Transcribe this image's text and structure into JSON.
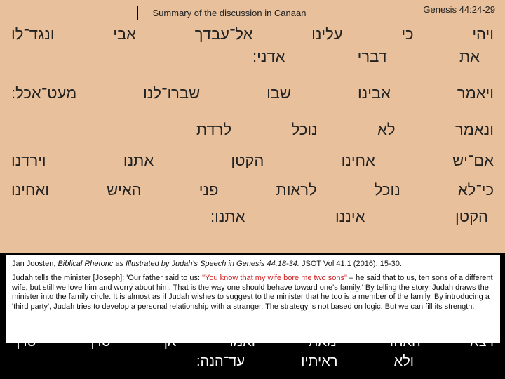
{
  "colors": {
    "panel_bg": "#e8c09b",
    "page_bg": "#000000",
    "text": "#222222",
    "citation_bg": "#ffffff",
    "citation_border": "#000000",
    "red": "#d02020",
    "bottom_text": "#ffffff"
  },
  "typography": {
    "body_font": "Arial",
    "hebrew_fontsize": 22,
    "header_fontsize": 13,
    "citation_fontsize": 11
  },
  "header": {
    "reference": "Genesis 44:24-29",
    "summary_label": "Summary of the discussion in Canaan"
  },
  "hebrew_lines": {
    "l1": [
      "ויהי",
      "כי",
      "עלינו",
      "אל־עבדך",
      "אבי",
      "ונגד־לו"
    ],
    "l2": [
      "את",
      "דברי",
      "אדני:"
    ],
    "l3": [
      "ויאמר",
      "אבינו",
      "שבו",
      "שברו־לנו",
      "מעט־אכל:"
    ],
    "l4": [
      "ונאמר",
      "לא",
      "נוכל",
      "לרדת"
    ],
    "l5": [
      "אם־יש",
      "אחינו",
      "הקטן",
      "אתנו",
      "וירדנו"
    ],
    "l6": [
      "כי־לא",
      "נוכל",
      "לראות",
      "פני",
      "האיש",
      "ואחינו"
    ],
    "l7": [
      "הקטן",
      "איננו",
      "אתנו:"
    ]
  },
  "bottom_lines": {
    "b1": [
      "ויצא",
      "האחד",
      "מאתי",
      "ואמר",
      "אך",
      "טרף",
      "טרף"
    ],
    "b2": [
      "ולא",
      "ראיתיו",
      "עד־הנה:"
    ]
  },
  "citation": {
    "author": "Jan Joosten,",
    "title_html": "Biblical Rhetoric as Illustrated by Judah's Speech in Genesis 44.18-34.",
    "journal": "JSOT Vol 41.1 (2016); 15-30.",
    "body_prefix": "Judah tells the minister [Joseph]: 'Our father said to us: ",
    "body_red": "\"You know that my wife bore me two sons\"",
    "body_suffix": " – he said that to us, ten sons of a different wife, but still we love him and worry about him. That is the way one should behave toward one's family.' By telling the story, Judah draws the minister into the family circle. It is almost as if Judah wishes to suggest to the minister that he too is a member of the family. By introducing a 'third party', Judah tries to develop a personal relationship with a stranger. The strategy is not based on logic. But we can fill its strength."
  }
}
